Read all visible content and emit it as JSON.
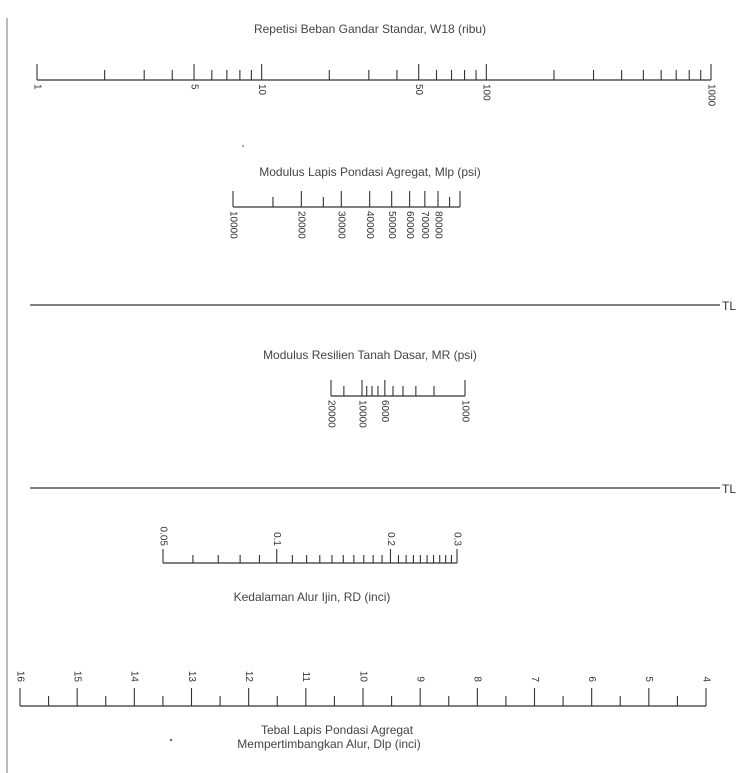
{
  "scale_w18": {
    "title": "Repetisi Beban Gandar Standar, W18 (ribu)",
    "min": 1,
    "max": 1000,
    "type": "log",
    "ticks": [
      1,
      2,
      3,
      4,
      5,
      6,
      7,
      8,
      9,
      10,
      20,
      30,
      40,
      50,
      60,
      70,
      80,
      90,
      100,
      200,
      300,
      400,
      500,
      600,
      700,
      800,
      900,
      1000
    ],
    "labels": [
      {
        "value": 1,
        "text": "1"
      },
      {
        "value": 5,
        "text": "5"
      },
      {
        "value": 10,
        "text": "10"
      },
      {
        "value": 50,
        "text": "50"
      },
      {
        "value": 100,
        "text": "100"
      },
      {
        "value": 1000,
        "text": "1000"
      }
    ]
  },
  "scale_mlp": {
    "title": "Modulus Lapis Pondasi Agregat, Mlp (psi)",
    "min": 10000,
    "max": 100000,
    "type": "log",
    "ticks": [
      10000,
      15000,
      20000,
      25000,
      30000,
      40000,
      50000,
      60000,
      70000,
      80000,
      90000,
      100000
    ],
    "labels": [
      {
        "value": 10000,
        "text": "10000"
      },
      {
        "value": 20000,
        "text": "20000"
      },
      {
        "value": 30000,
        "text": "30000"
      },
      {
        "value": 40000,
        "text": "40000"
      },
      {
        "value": 50000,
        "text": "50000"
      },
      {
        "value": 60000,
        "text": "60000"
      },
      {
        "value": 70000,
        "text": "70000"
      },
      {
        "value": 80000,
        "text": "80000"
      }
    ]
  },
  "turning_line_label": "TL",
  "scale_mr": {
    "title": "Modulus Resilien Tanah Dasar, MR (psi)",
    "min": 1000,
    "max": 20000,
    "type": "log",
    "reversed": true,
    "ticks": [
      20000,
      15000,
      10000,
      9000,
      8000,
      7000,
      6000,
      5000,
      4000,
      3000,
      2000,
      1000
    ],
    "labels": [
      {
        "value": 20000,
        "text": "20000"
      },
      {
        "value": 10000,
        "text": "10000"
      },
      {
        "value": 6000,
        "text": "6000"
      },
      {
        "value": 1000,
        "text": "1000"
      }
    ]
  },
  "scale_rd": {
    "title": "Kedalaman Alur Ijin, RD (inci)",
    "min": 0.05,
    "max": 0.3,
    "type": "log",
    "ticks": [
      0.05,
      0.06,
      0.07,
      0.08,
      0.09,
      0.1,
      0.11,
      0.12,
      0.13,
      0.14,
      0.15,
      0.16,
      0.17,
      0.18,
      0.19,
      0.2,
      0.21,
      0.22,
      0.23,
      0.24,
      0.25,
      0.26,
      0.27,
      0.28,
      0.29,
      0.3
    ],
    "labels": [
      {
        "value": 0.05,
        "text": "0.05"
      },
      {
        "value": 0.1,
        "text": "0.1"
      },
      {
        "value": 0.2,
        "text": "0.2"
      },
      {
        "value": 0.3,
        "text": "0.3"
      }
    ]
  },
  "scale_dlp": {
    "title_line1": "Tebal Lapis Pondasi Agregat",
    "title_line2": "Mempertimbangkan Alur, Dlp (inci)",
    "min": 4,
    "max": 16,
    "reversed": true,
    "ticks": [
      16,
      15.5,
      15,
      14.5,
      14,
      13.5,
      13,
      12.5,
      12,
      11.5,
      11,
      10.5,
      10,
      9.5,
      9,
      8.5,
      8,
      7.5,
      7,
      6.5,
      6,
      5.5,
      5,
      4.5,
      4
    ],
    "labels": [
      {
        "value": 16,
        "text": "16"
      },
      {
        "value": 15,
        "text": "15"
      },
      {
        "value": 14,
        "text": "14"
      },
      {
        "value": 13,
        "text": "13"
      },
      {
        "value": 12,
        "text": "12"
      },
      {
        "value": 11,
        "text": "11"
      },
      {
        "value": 10,
        "text": "10"
      },
      {
        "value": 9,
        "text": "9"
      },
      {
        "value": 8,
        "text": "8"
      },
      {
        "value": 7,
        "text": "7"
      },
      {
        "value": 6,
        "text": "6"
      },
      {
        "value": 5,
        "text": "5"
      },
      {
        "value": 4,
        "text": "4"
      }
    ]
  }
}
